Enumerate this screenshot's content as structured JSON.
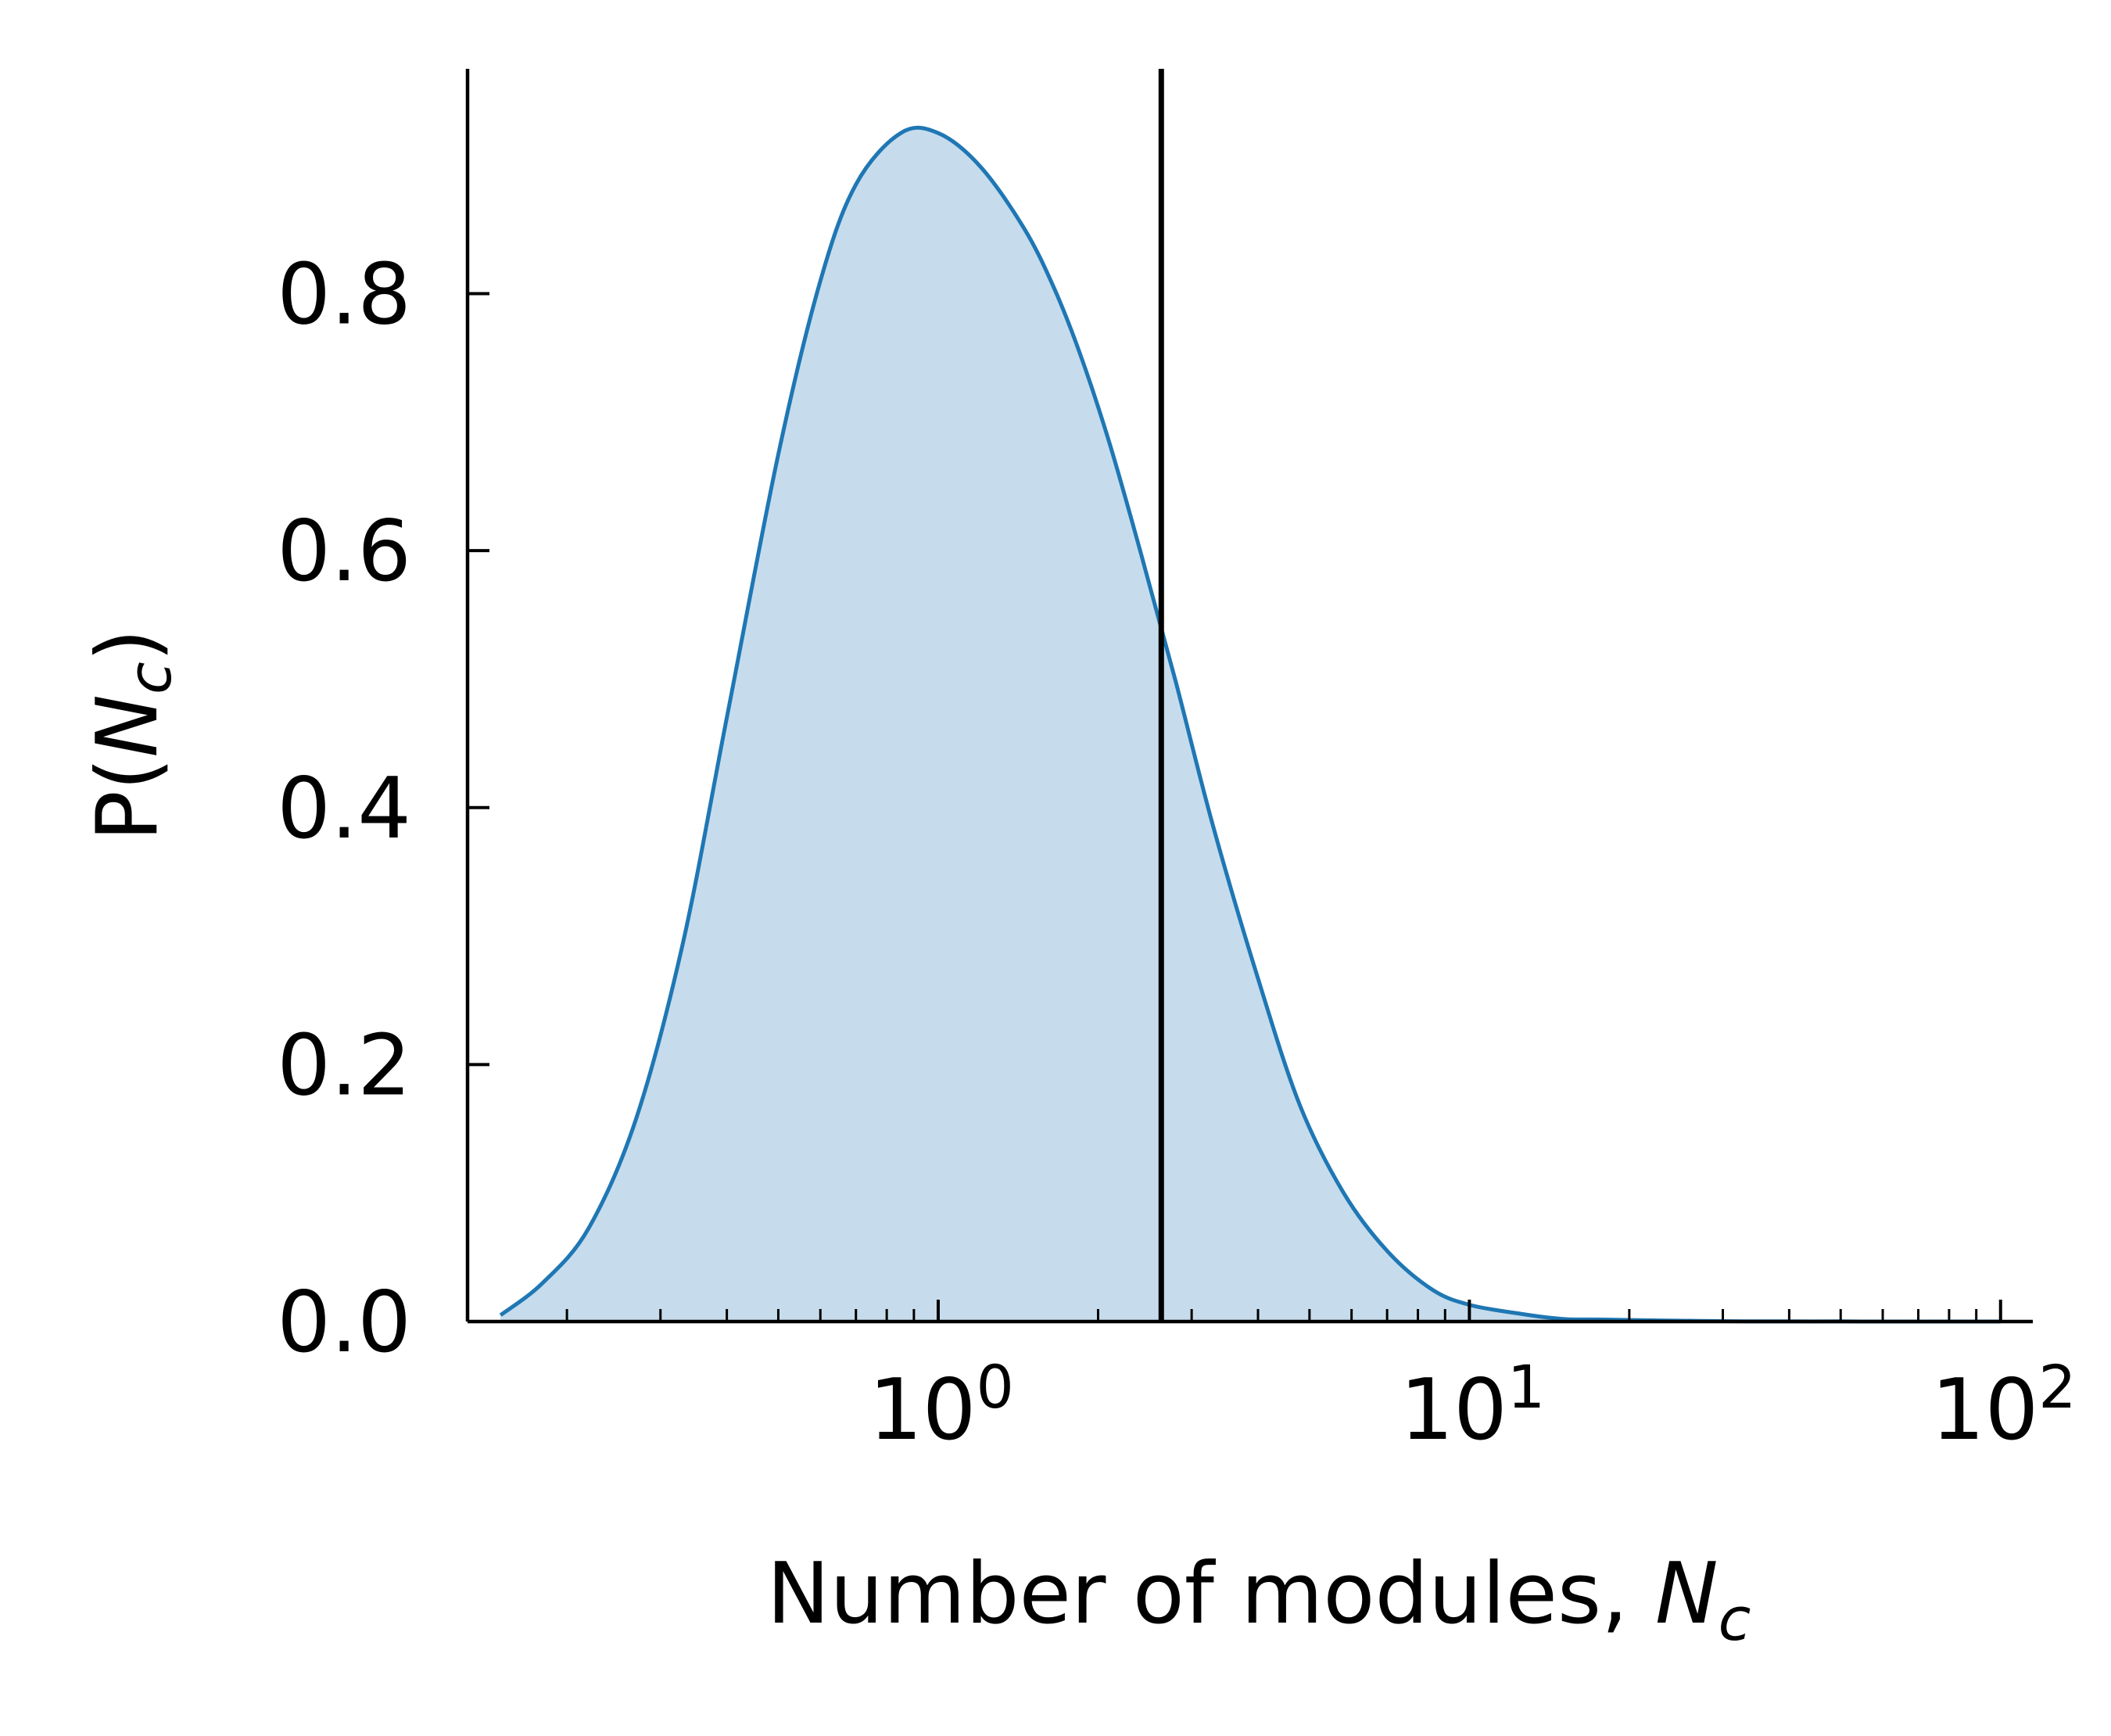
{
  "colors": {
    "line": "#1f77b4",
    "fill": "#c6dcec",
    "axis": "#000000",
    "marker": "#000000"
  },
  "chart_data": {
    "type": "area",
    "title": "",
    "xlabel": {
      "text": "Number of modules, ",
      "symbol": "N",
      "sub": "c"
    },
    "ylabel": {
      "prefix": "P(",
      "symbol": "N",
      "sub": "c",
      "suffix": ")"
    },
    "x_scale": "log",
    "xlim": [
      0.13,
      115
    ],
    "ylim": [
      0,
      0.975
    ],
    "yticks": [
      {
        "value": 0.0,
        "label": "0.0"
      },
      {
        "value": 0.2,
        "label": "0.2"
      },
      {
        "value": 0.4,
        "label": "0.4"
      },
      {
        "value": 0.6,
        "label": "0.6"
      },
      {
        "value": 0.8,
        "label": "0.8"
      }
    ],
    "xticks": [
      {
        "value": 1,
        "base": "10",
        "exp": "0"
      },
      {
        "value": 10,
        "base": "10",
        "exp": "1"
      },
      {
        "value": 100,
        "base": "10",
        "exp": "2"
      }
    ],
    "minor_xticks": [
      0.2,
      0.3,
      0.4,
      0.5,
      0.6,
      0.7,
      0.8,
      0.9,
      2,
      3,
      4,
      5,
      6,
      7,
      8,
      9,
      20,
      30,
      40,
      50,
      60,
      70,
      80,
      90
    ],
    "grid": false,
    "series": [
      {
        "x": [
          0.15,
          0.18,
          0.22,
          0.27,
          0.33,
          0.4,
          0.5,
          0.6,
          0.7,
          0.85,
          1.0,
          1.2,
          1.45,
          1.65,
          1.85,
          2.1,
          2.4,
          2.8,
          3.3,
          4.0,
          4.8,
          5.8,
          7.0,
          8.5,
          10.0,
          12.5,
          15.0,
          18.0,
          22.0,
          27.0,
          33.0,
          40.0,
          50.0,
          60.0,
          75.0,
          100.0
        ],
        "y": [
          0.005,
          0.03,
          0.073,
          0.158,
          0.293,
          0.47,
          0.675,
          0.81,
          0.885,
          0.925,
          0.925,
          0.899,
          0.851,
          0.805,
          0.753,
          0.684,
          0.6,
          0.498,
          0.384,
          0.267,
          0.168,
          0.1,
          0.055,
          0.025,
          0.013,
          0.006,
          0.002,
          0.0015,
          0.0009,
          0.0005,
          0.0002,
          0.0001,
          0.0001,
          0.0,
          0.0,
          0.0
        ]
      }
    ],
    "vline": {
      "x": 2.63,
      "y_top": 0.975
    }
  }
}
